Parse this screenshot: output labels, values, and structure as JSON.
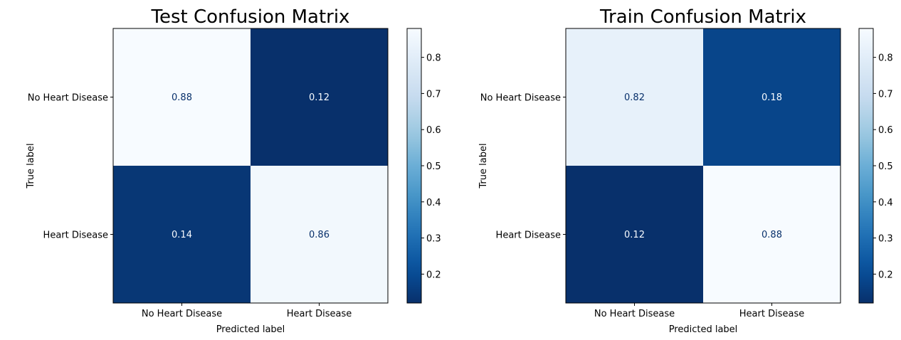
{
  "chart_data": [
    {
      "type": "heatmap",
      "title": "Test Confusion Matrix",
      "xlabel": "Predicted label",
      "ylabel": "True label",
      "x_categories": [
        "No Heart Disease",
        "Heart Disease"
      ],
      "y_categories": [
        "No Heart Disease",
        "Heart Disease"
      ],
      "values": [
        [
          0.88,
          0.12
        ],
        [
          0.14,
          0.86
        ]
      ],
      "cell_labels": [
        [
          "0.88",
          "0.12"
        ],
        [
          "0.14",
          "0.86"
        ]
      ],
      "colormap": "Blues_r",
      "colorbar": {
        "range": [
          0.12,
          0.88
        ],
        "ticks": [
          0.2,
          0.3,
          0.4,
          0.5,
          0.6,
          0.7,
          0.8
        ],
        "tick_labels": [
          "0.2",
          "0.3",
          "0.4",
          "0.5",
          "0.6",
          "0.7",
          "0.8"
        ]
      }
    },
    {
      "type": "heatmap",
      "title": "Train Confusion Matrix",
      "xlabel": "Predicted label",
      "ylabel": "True label",
      "x_categories": [
        "No Heart Disease",
        "Heart Disease"
      ],
      "y_categories": [
        "No Heart Disease",
        "Heart Disease"
      ],
      "values": [
        [
          0.82,
          0.18
        ],
        [
          0.12,
          0.88
        ]
      ],
      "cell_labels": [
        [
          "0.82",
          "0.18"
        ],
        [
          "0.12",
          "0.88"
        ]
      ],
      "colormap": "Blues_r",
      "colorbar": {
        "range": [
          0.12,
          0.88
        ],
        "ticks": [
          0.2,
          0.3,
          0.4,
          0.5,
          0.6,
          0.7,
          0.8
        ],
        "tick_labels": [
          "0.2",
          "0.3",
          "0.4",
          "0.5",
          "0.6",
          "0.7",
          "0.8"
        ]
      }
    }
  ],
  "colors": {
    "dark": "#08306b",
    "light": "#f7fbff",
    "text_on_dark": "#f7fbff",
    "text_on_light": "#08306b"
  }
}
